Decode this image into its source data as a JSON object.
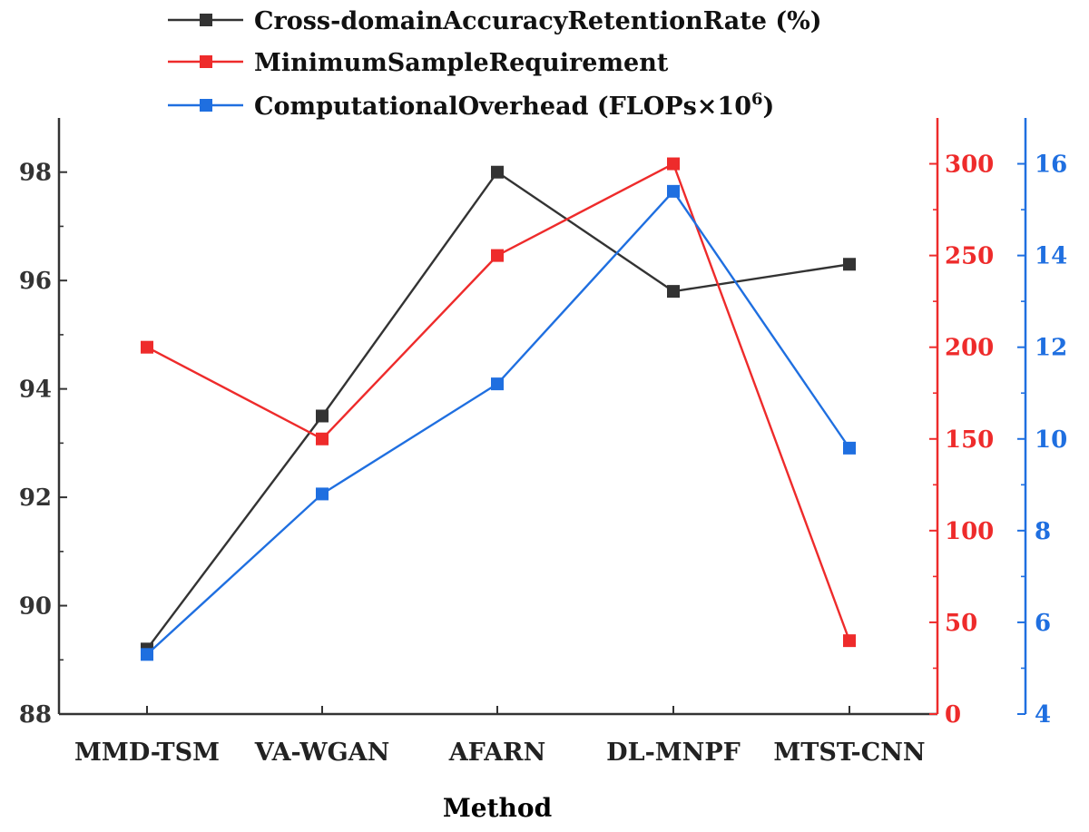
{
  "chart_data": {
    "type": "line",
    "categories": [
      "MMD-TSM",
      "VA-WGAN",
      "AFARN",
      "DL-MNPF",
      "MTST-CNN"
    ],
    "xlabel": "Method",
    "series": [
      {
        "name": "Cross-domainAccuracyRetentionRate (%)",
        "axis": "left",
        "color": "#333333",
        "values": [
          89.2,
          93.5,
          98.0,
          95.8,
          96.3
        ]
      },
      {
        "name": "MinimumSampleRequirement",
        "axis": "right1",
        "color": "#ee2b2b",
        "values": [
          200,
          150,
          250,
          300,
          40
        ]
      },
      {
        "name": "ComputationalOverhead (FLOPs×10",
        "name_sup": "6",
        "name_tail": ")",
        "axis": "right2",
        "color": "#1f6fe0",
        "values": [
          5.3,
          8.8,
          11.2,
          15.4,
          9.8
        ]
      }
    ],
    "axes": {
      "left": {
        "ylim": [
          88,
          99
        ],
        "ticks": [
          88,
          90,
          92,
          94,
          96,
          98
        ],
        "color": "#333333"
      },
      "right1": {
        "ylim": [
          0,
          325
        ],
        "ticks": [
          0,
          50,
          100,
          150,
          200,
          250,
          300
        ],
        "color": "#ee2b2b"
      },
      "right2": {
        "ylim": [
          4,
          17
        ],
        "ticks": [
          4,
          6,
          8,
          10,
          12,
          14,
          16
        ],
        "color": "#1f6fe0"
      }
    },
    "grid": false,
    "legend": "top-center"
  }
}
